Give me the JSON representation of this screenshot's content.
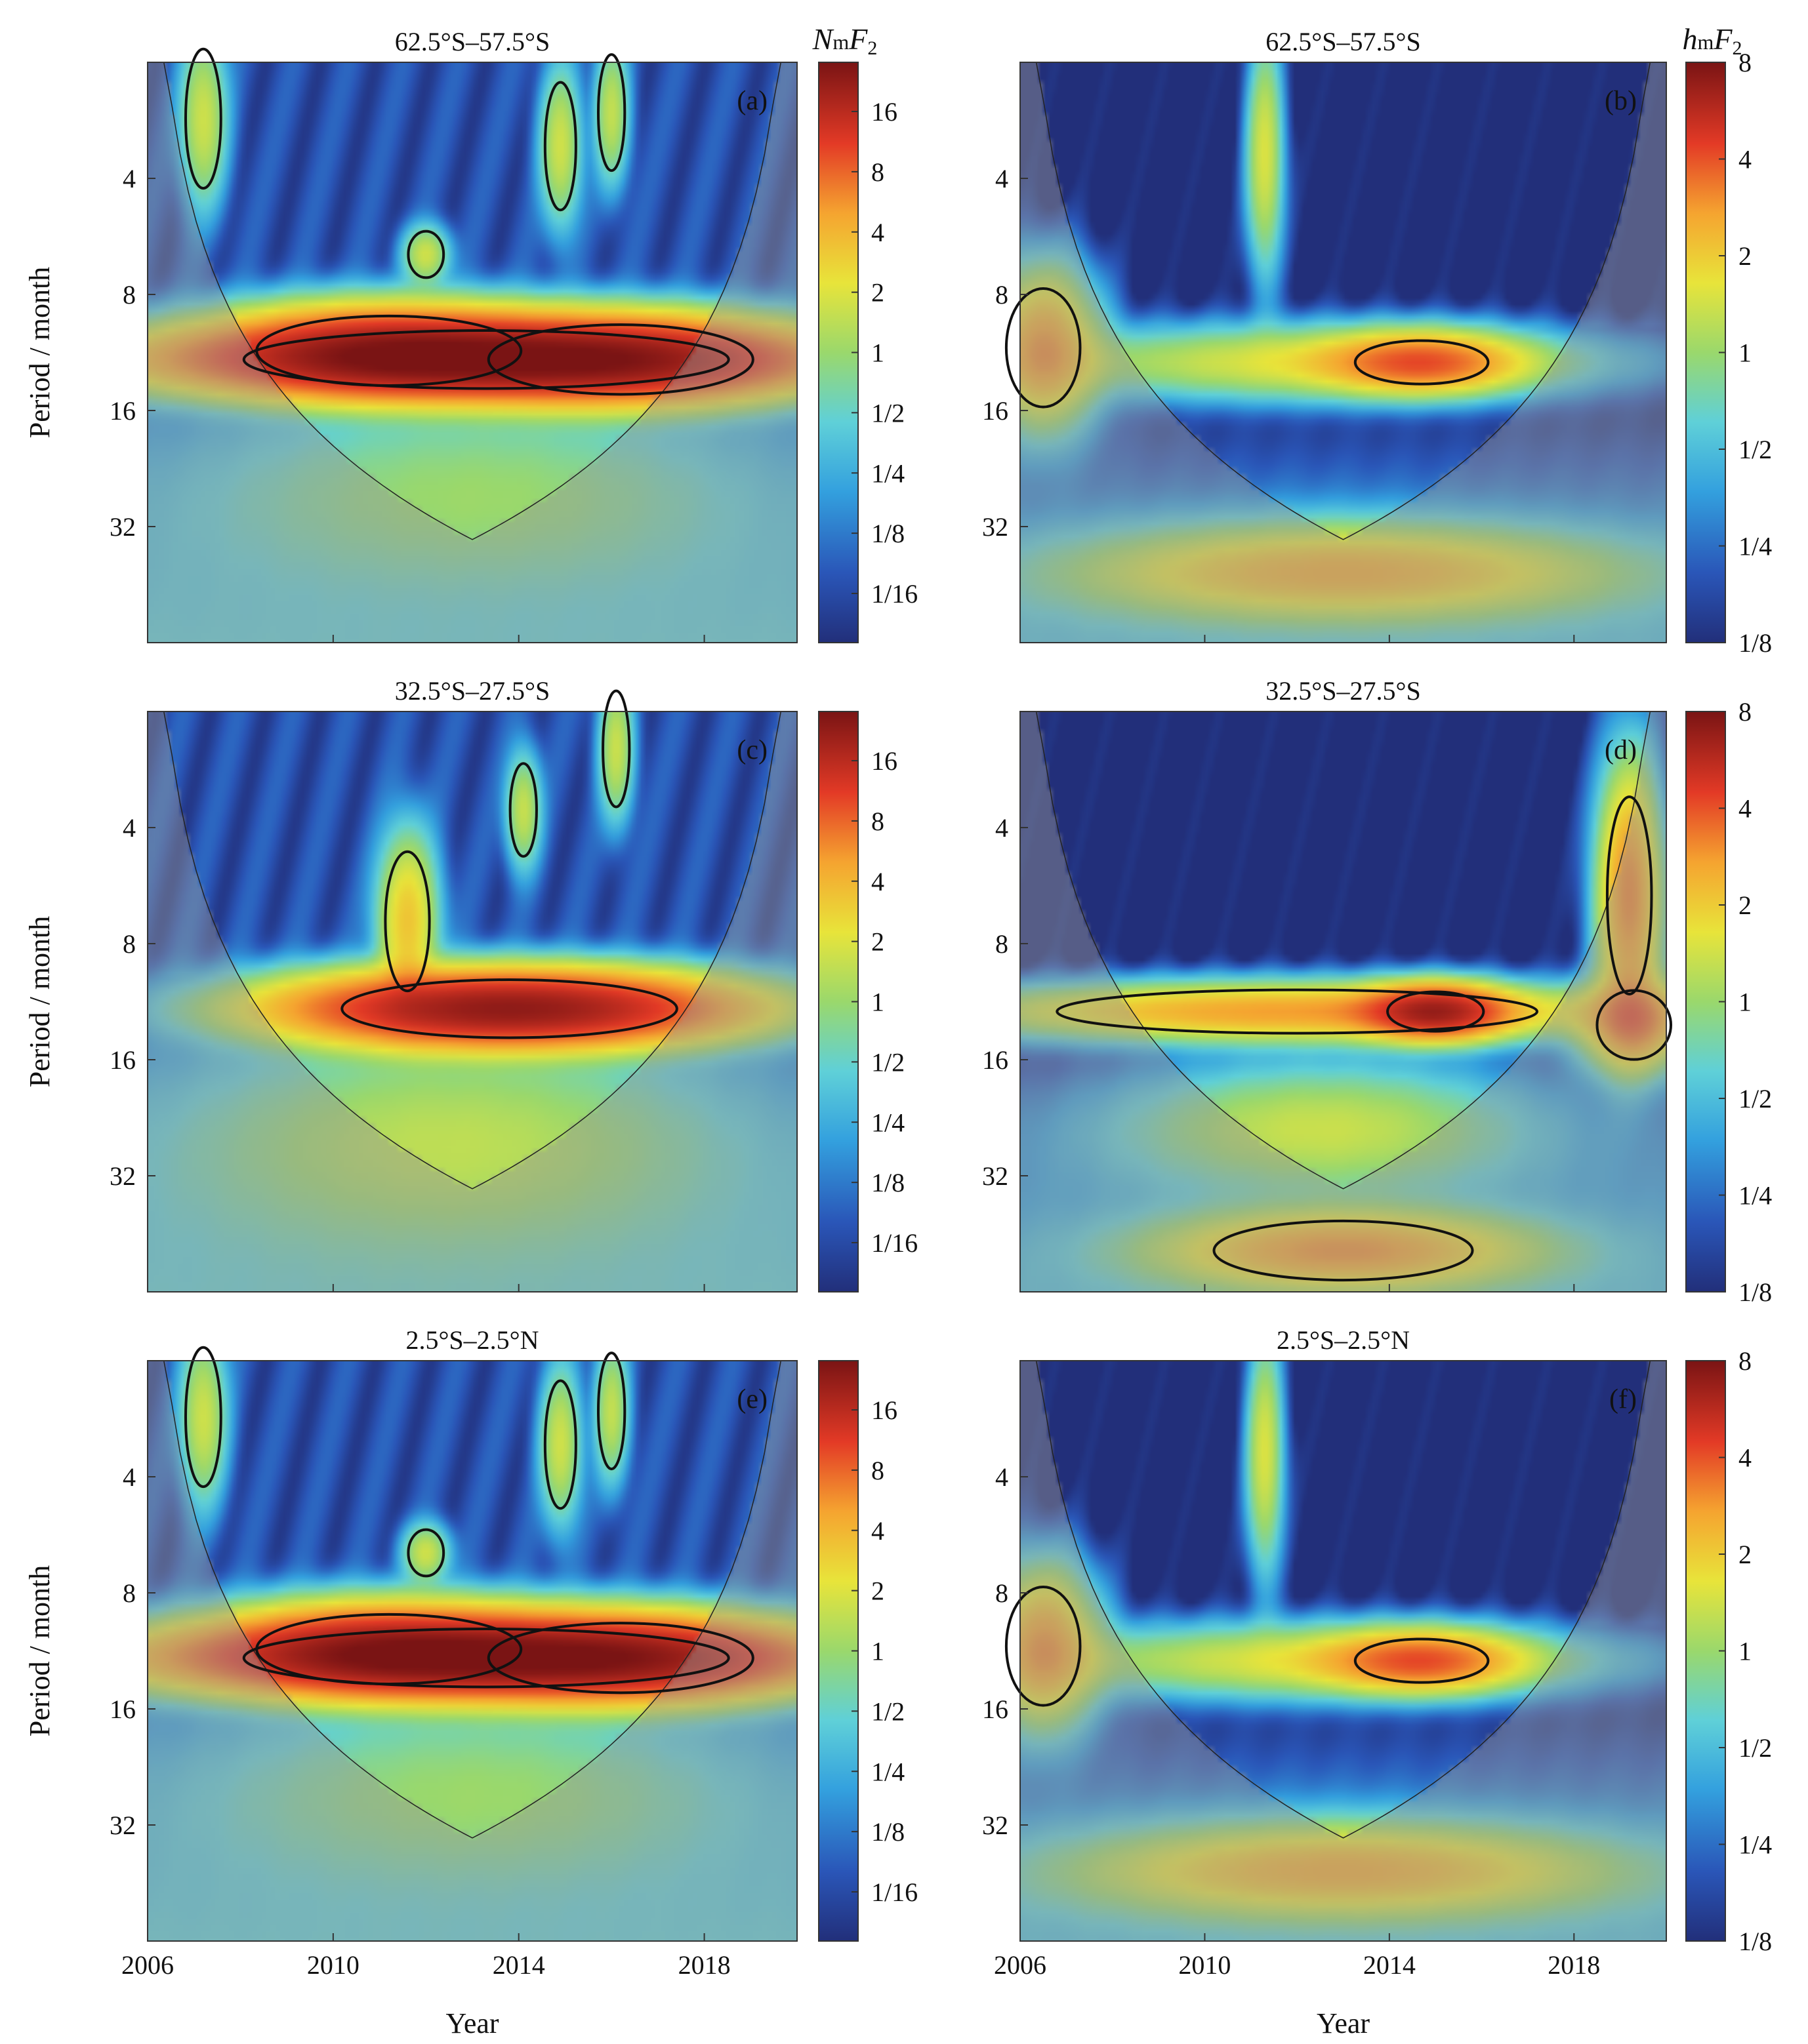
{
  "figure": {
    "x_label": "Year",
    "y_label": "Period / month",
    "x_ticks": [
      "2006",
      "2010",
      "2014",
      "2018"
    ],
    "y_ticks": [
      "4",
      "8",
      "16",
      "32"
    ],
    "colorbars": {
      "nmf2": {
        "label_main": "N",
        "label_sub": "m",
        "label_end": "F",
        "label_end_sub": "2",
        "ticks": [
          "16",
          "8",
          "4",
          "2",
          "1",
          "1/2",
          "1/4",
          "1/8",
          "1/16"
        ]
      },
      "hmf2": {
        "label_main": "h",
        "label_sub": "m",
        "label_end": "F",
        "label_end_sub": "2",
        "ticks": [
          "8",
          "4",
          "2",
          "1",
          "1/2",
          "1/4",
          "1/8"
        ]
      }
    }
  },
  "chart_data": [
    {
      "type": "heatmap",
      "panel": "(a)",
      "title": "62.5°S–57.5°S",
      "variable": "NmF2",
      "xlabel": "",
      "ylabel": "Period / month",
      "xlim": [
        2006,
        2020
      ],
      "ylim_period": [
        2,
        64
      ],
      "y_log": true,
      "power_blobs": [
        {
          "t": 2013.3,
          "period": 11.8,
          "power": 18,
          "dt": 5.5,
          "dp": 0.25
        },
        {
          "t": 2011.2,
          "period": 11.2,
          "power": 12,
          "dt": 3.0,
          "dp": 0.3
        },
        {
          "t": 2016.2,
          "period": 11.8,
          "power": 10,
          "dt": 3.0,
          "dp": 0.3
        },
        {
          "t": 2007.2,
          "period": 2.8,
          "power": 1.6,
          "dt": 0.4,
          "dp": 0.6
        },
        {
          "t": 2014.9,
          "period": 3.3,
          "power": 1.6,
          "dt": 0.35,
          "dp": 0.55
        },
        {
          "t": 2016.0,
          "period": 2.7,
          "power": 1.4,
          "dt": 0.3,
          "dp": 0.5
        },
        {
          "t": 2012.0,
          "period": 6.3,
          "power": 1.6,
          "dt": 0.4,
          "dp": 0.2
        },
        {
          "t": 2013.0,
          "period": 26,
          "power": 0.8,
          "dt": 5.0,
          "dp": 0.7
        }
      ]
    },
    {
      "type": "heatmap",
      "panel": "(b)",
      "title": "62.5°S–57.5°S",
      "variable": "hmF2",
      "xlabel": "",
      "ylabel": "",
      "xlim": [
        2006,
        2020
      ],
      "ylim_period": [
        2,
        64
      ],
      "y_log": true,
      "power_blobs": [
        {
          "t": 2014.7,
          "period": 12,
          "power": 3.5,
          "dt": 1.8,
          "dp": 0.22
        },
        {
          "t": 2012.5,
          "period": 12,
          "power": 1.6,
          "dt": 5.5,
          "dp": 0.28
        },
        {
          "t": 2011.3,
          "period": 3.5,
          "power": 1.5,
          "dt": 0.35,
          "dp": 0.9
        },
        {
          "t": 2006.5,
          "period": 11,
          "power": 3.0,
          "dt": 1.0,
          "dp": 0.6
        },
        {
          "t": 2013.0,
          "period": 42,
          "power": 2.5,
          "dt": 5.0,
          "dp": 0.35
        }
      ]
    },
    {
      "type": "heatmap",
      "panel": "(c)",
      "title": "32.5°S–27.5°S",
      "variable": "NmF2",
      "xlabel": "",
      "ylabel": "Period / month",
      "xlim": [
        2006,
        2020
      ],
      "ylim_period": [
        2,
        64
      ],
      "y_log": true,
      "power_blobs": [
        {
          "t": 2013.8,
          "period": 11.8,
          "power": 20,
          "dt": 3.8,
          "dp": 0.25
        },
        {
          "t": 2011.6,
          "period": 7.0,
          "power": 3,
          "dt": 0.5,
          "dp": 0.6
        },
        {
          "t": 2014.1,
          "period": 3.6,
          "power": 1.5,
          "dt": 0.3,
          "dp": 0.4
        },
        {
          "t": 2016.1,
          "period": 2.5,
          "power": 1.5,
          "dt": 0.3,
          "dp": 0.5
        },
        {
          "t": 2012.5,
          "period": 26,
          "power": 1.2,
          "dt": 5.0,
          "dp": 0.8
        }
      ]
    },
    {
      "type": "heatmap",
      "panel": "(d)",
      "title": "32.5°S–27.5°S",
      "variable": "hmF2",
      "xlabel": "",
      "ylabel": "",
      "xlim": [
        2006,
        2020
      ],
      "ylim_period": [
        2,
        64
      ],
      "y_log": true,
      "power_blobs": [
        {
          "t": 2015.0,
          "period": 12,
          "power": 6,
          "dt": 1.3,
          "dp": 0.2
        },
        {
          "t": 2012.0,
          "period": 12,
          "power": 3,
          "dt": 6.5,
          "dp": 0.22
        },
        {
          "t": 2019.2,
          "period": 6,
          "power": 3.5,
          "dt": 0.6,
          "dp": 1.0
        },
        {
          "t": 2019.3,
          "period": 13,
          "power": 3,
          "dt": 1.0,
          "dp": 0.35
        },
        {
          "t": 2013.0,
          "period": 50,
          "power": 3,
          "dt": 3.5,
          "dp": 0.3
        },
        {
          "t": 2012.5,
          "period": 24,
          "power": 1.2,
          "dt": 4.0,
          "dp": 0.5
        }
      ]
    },
    {
      "type": "heatmap",
      "panel": "(e)",
      "title": "2.5°S–2.5°N",
      "variable": "NmF2",
      "xlabel": "Year",
      "ylabel": "Period / month",
      "xlim": [
        2006,
        2020
      ],
      "ylim_period": [
        2,
        64
      ],
      "y_log": true,
      "power_blobs": [
        {
          "t": 2013.3,
          "period": 11.8,
          "power": 18,
          "dt": 5.5,
          "dp": 0.25
        },
        {
          "t": 2011.2,
          "period": 11.2,
          "power": 12,
          "dt": 3.0,
          "dp": 0.3
        },
        {
          "t": 2016.2,
          "period": 11.8,
          "power": 10,
          "dt": 3.0,
          "dp": 0.3
        },
        {
          "t": 2007.2,
          "period": 2.8,
          "power": 1.6,
          "dt": 0.4,
          "dp": 0.6
        },
        {
          "t": 2014.9,
          "period": 3.3,
          "power": 1.6,
          "dt": 0.35,
          "dp": 0.55
        },
        {
          "t": 2016.0,
          "period": 2.7,
          "power": 1.4,
          "dt": 0.3,
          "dp": 0.5
        },
        {
          "t": 2012.0,
          "period": 6.3,
          "power": 1.6,
          "dt": 0.4,
          "dp": 0.2
        },
        {
          "t": 2013.0,
          "period": 26,
          "power": 0.8,
          "dt": 5.0,
          "dp": 0.7
        }
      ]
    },
    {
      "type": "heatmap",
      "panel": "(f)",
      "title": "2.5°S–2.5°N",
      "variable": "hmF2",
      "xlabel": "Year",
      "ylabel": "",
      "xlim": [
        2006,
        2020
      ],
      "ylim_period": [
        2,
        64
      ],
      "y_log": true,
      "power_blobs": [
        {
          "t": 2014.7,
          "period": 12,
          "power": 3.5,
          "dt": 1.8,
          "dp": 0.22
        },
        {
          "t": 2012.5,
          "period": 12,
          "power": 1.6,
          "dt": 5.5,
          "dp": 0.28
        },
        {
          "t": 2011.3,
          "period": 3.5,
          "power": 1.5,
          "dt": 0.35,
          "dp": 0.9
        },
        {
          "t": 2006.5,
          "period": 11,
          "power": 3.0,
          "dt": 1.0,
          "dp": 0.6
        },
        {
          "t": 2013.0,
          "period": 42,
          "power": 2.5,
          "dt": 5.0,
          "dp": 0.35
        }
      ]
    }
  ]
}
